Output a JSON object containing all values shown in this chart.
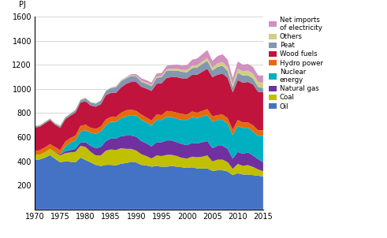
{
  "years": [
    1970,
    1971,
    1972,
    1973,
    1974,
    1975,
    1976,
    1977,
    1978,
    1979,
    1980,
    1981,
    1982,
    1983,
    1984,
    1985,
    1986,
    1987,
    1988,
    1989,
    1990,
    1991,
    1992,
    1993,
    1994,
    1995,
    1996,
    1997,
    1998,
    1999,
    2000,
    2001,
    2002,
    2003,
    2004,
    2005,
    2006,
    2007,
    2008,
    2009,
    2010,
    2011,
    2012,
    2013,
    2014,
    2015
  ],
  "oil": [
    410,
    415,
    430,
    450,
    420,
    390,
    400,
    395,
    390,
    430,
    410,
    390,
    370,
    360,
    370,
    370,
    365,
    380,
    385,
    395,
    390,
    370,
    365,
    355,
    360,
    355,
    355,
    360,
    355,
    350,
    345,
    350,
    340,
    340,
    340,
    320,
    325,
    325,
    315,
    285,
    300,
    290,
    290,
    285,
    280,
    275
  ],
  "coal": [
    40,
    42,
    45,
    52,
    55,
    58,
    68,
    78,
    88,
    98,
    108,
    88,
    78,
    88,
    118,
    128,
    128,
    128,
    118,
    108,
    98,
    88,
    78,
    68,
    88,
    88,
    98,
    93,
    88,
    78,
    78,
    88,
    93,
    98,
    108,
    78,
    88,
    88,
    78,
    52,
    78,
    72,
    78,
    68,
    52,
    42
  ],
  "natural_gas": [
    0,
    0,
    0,
    0,
    5,
    10,
    15,
    20,
    25,
    30,
    40,
    50,
    60,
    70,
    80,
    90,
    95,
    100,
    110,
    110,
    115,
    110,
    105,
    100,
    110,
    115,
    120,
    120,
    115,
    115,
    110,
    115,
    115,
    120,
    120,
    110,
    115,
    115,
    110,
    85,
    100,
    100,
    105,
    95,
    85,
    75
  ],
  "nuclear": [
    0,
    0,
    0,
    0,
    0,
    0,
    40,
    60,
    70,
    90,
    100,
    110,
    120,
    130,
    130,
    140,
    140,
    150,
    160,
    170,
    175,
    175,
    175,
    175,
    185,
    185,
    195,
    195,
    195,
    200,
    210,
    215,
    210,
    215,
    215,
    220,
    215,
    215,
    210,
    195,
    215,
    215,
    205,
    200,
    195,
    220
  ],
  "hydro": [
    35,
    35,
    40,
    40,
    38,
    35,
    40,
    40,
    40,
    45,
    45,
    40,
    40,
    40,
    50,
    40,
    40,
    45,
    50,
    45,
    40,
    45,
    40,
    40,
    45,
    40,
    50,
    45,
    50,
    50,
    45,
    45,
    45,
    45,
    50,
    45,
    40,
    45,
    45,
    45,
    50,
    45,
    45,
    50,
    45,
    45
  ],
  "wood_fuels": [
    195,
    195,
    200,
    200,
    185,
    185,
    185,
    185,
    190,
    195,
    195,
    185,
    185,
    185,
    200,
    200,
    200,
    210,
    220,
    230,
    240,
    230,
    240,
    245,
    255,
    265,
    275,
    285,
    295,
    295,
    300,
    305,
    315,
    325,
    335,
    325,
    335,
    340,
    335,
    310,
    330,
    330,
    335,
    340,
    320,
    315
  ],
  "peat": [
    10,
    10,
    10,
    10,
    10,
    15,
    15,
    15,
    20,
    20,
    25,
    25,
    25,
    30,
    35,
    40,
    45,
    50,
    45,
    50,
    45,
    40,
    40,
    40,
    50,
    50,
    60,
    55,
    55,
    55,
    50,
    55,
    60,
    65,
    65,
    55,
    65,
    65,
    55,
    40,
    60,
    60,
    55,
    50,
    40,
    35
  ],
  "others": [
    5,
    5,
    5,
    5,
    5,
    5,
    5,
    5,
    5,
    5,
    5,
    5,
    5,
    5,
    5,
    5,
    5,
    5,
    5,
    5,
    5,
    10,
    10,
    10,
    10,
    10,
    10,
    15,
    15,
    15,
    20,
    20,
    20,
    20,
    25,
    25,
    30,
    30,
    35,
    30,
    35,
    35,
    40,
    40,
    40,
    45
  ],
  "net_imports": [
    0,
    0,
    0,
    0,
    0,
    0,
    0,
    0,
    0,
    0,
    0,
    0,
    0,
    0,
    0,
    0,
    5,
    5,
    5,
    10,
    15,
    20,
    20,
    20,
    25,
    25,
    30,
    30,
    35,
    35,
    40,
    50,
    55,
    60,
    65,
    55,
    60,
    65,
    60,
    50,
    60,
    55,
    55,
    55,
    55,
    60
  ],
  "colors": {
    "oil": "#4472c4",
    "coal": "#c0c000",
    "natural_gas": "#7030a0",
    "nuclear": "#00b0c0",
    "hydro": "#e36c09",
    "wood_fuels": "#c0143c",
    "peat": "#8496b0",
    "others": "#d0d080",
    "net_imports": "#d090c0"
  },
  "labels": {
    "oil": "Oil",
    "coal": "Coal",
    "natural_gas": "Natural gas",
    "nuclear": "Nuclear\nenergy",
    "hydro": "Hydro power",
    "wood_fuels": "Wood fuels",
    "peat": "Peat",
    "others": "Others",
    "net_imports": "Net imports\nof electricity"
  },
  "ylabel": "PJ",
  "ylim": [
    0,
    1600
  ],
  "yticks": [
    0,
    200,
    400,
    600,
    800,
    1000,
    1200,
    1400,
    1600
  ],
  "xticks": [
    1970,
    1975,
    1980,
    1985,
    1990,
    1995,
    2000,
    2005,
    2010,
    2015
  ],
  "xlim": [
    1970,
    2015
  ]
}
